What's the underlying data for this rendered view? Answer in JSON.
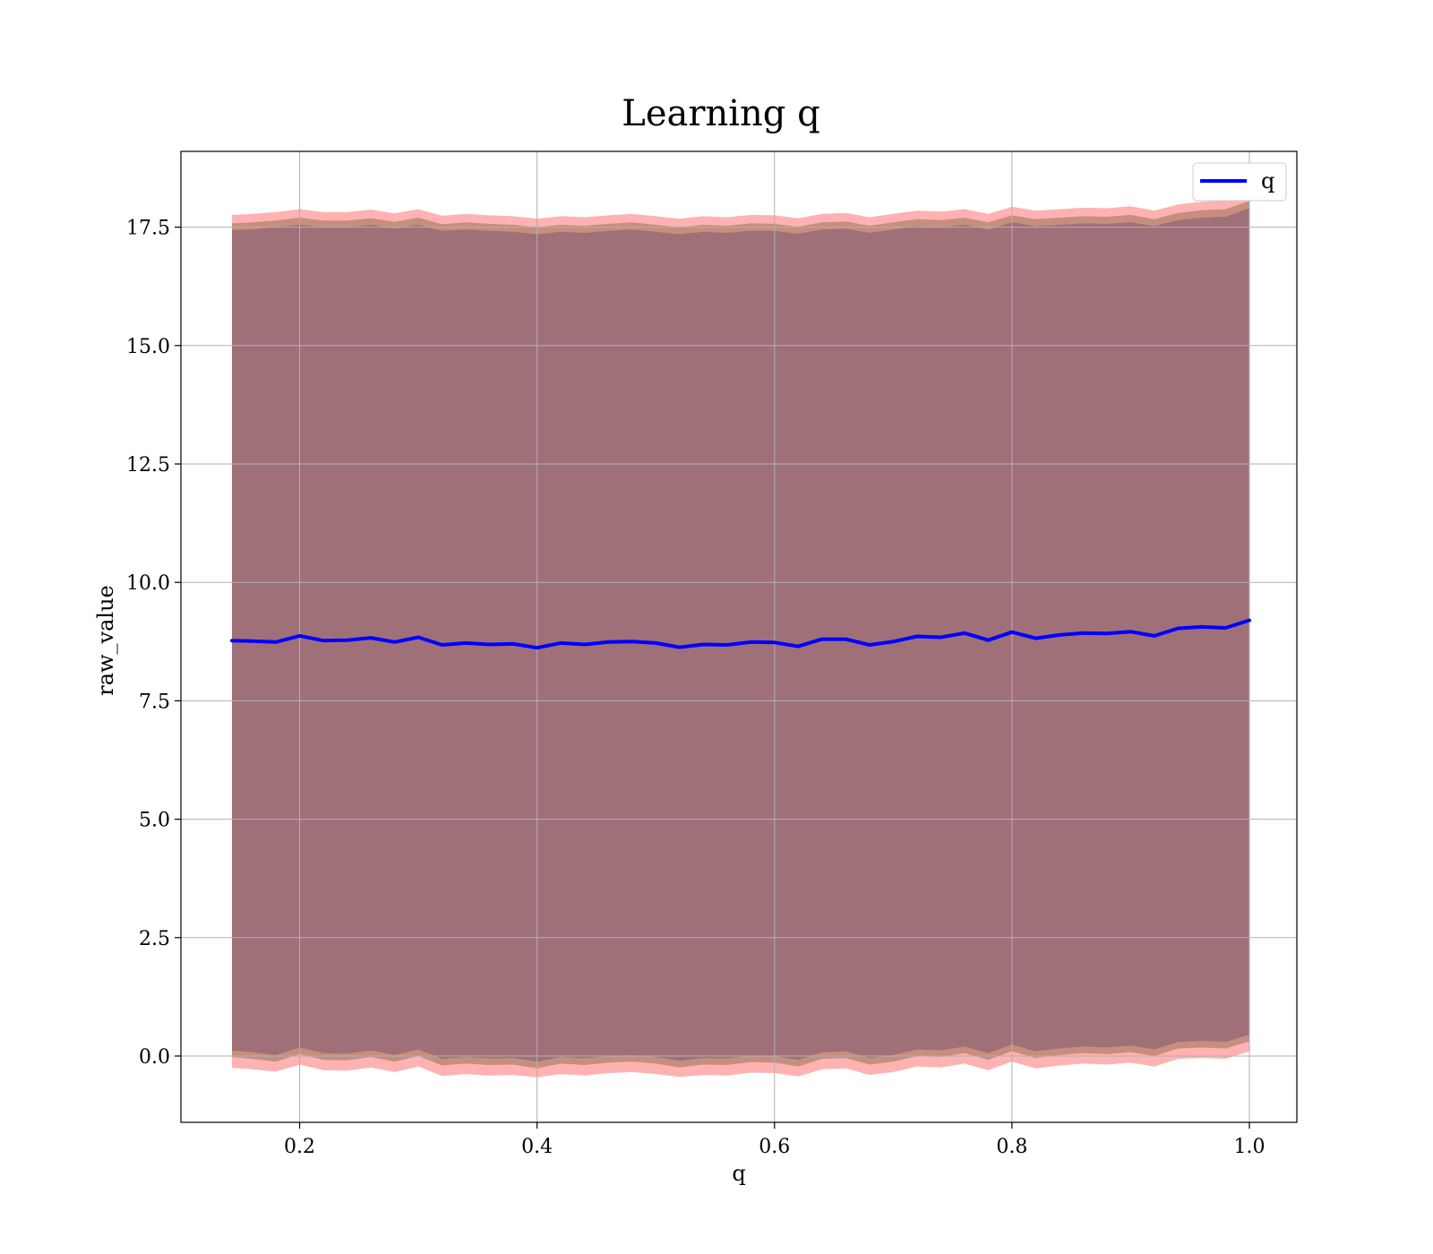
{
  "chart_data": {
    "type": "line",
    "title": "Learning q",
    "xlabel": "q",
    "ylabel": "raw_value",
    "xlim": [
      0.1,
      1.04
    ],
    "ylim": [
      -1.4,
      19.1
    ],
    "xticks": [
      "0.2",
      "0.4",
      "0.6",
      "0.8",
      "1.0"
    ],
    "xtick_values": [
      0.2,
      0.4,
      0.6,
      0.8,
      1.0
    ],
    "yticks": [
      "0.0",
      "2.5",
      "5.0",
      "7.5",
      "10.0",
      "12.5",
      "15.0",
      "17.5"
    ],
    "ytick_values": [
      0.0,
      2.5,
      5.0,
      7.5,
      10.0,
      12.5,
      15.0,
      17.5
    ],
    "grid": true,
    "legend": {
      "position": "top-right",
      "entries": [
        "q"
      ]
    },
    "colors": {
      "line": "#0000ff",
      "outer_band": "#ffaaaa",
      "middle_band": "#c08a78",
      "inner_band": "#a07078"
    },
    "series": [
      {
        "name": "q",
        "x": [
          0.143,
          0.16,
          0.18,
          0.2,
          0.22,
          0.24,
          0.26,
          0.28,
          0.3,
          0.32,
          0.34,
          0.36,
          0.38,
          0.4,
          0.42,
          0.44,
          0.46,
          0.48,
          0.5,
          0.52,
          0.54,
          0.56,
          0.58,
          0.6,
          0.62,
          0.64,
          0.66,
          0.68,
          0.7,
          0.72,
          0.74,
          0.76,
          0.78,
          0.8,
          0.82,
          0.84,
          0.86,
          0.88,
          0.9,
          0.92,
          0.94,
          0.96,
          0.98,
          1.0
        ],
        "y": [
          8.77,
          8.76,
          8.74,
          8.87,
          8.77,
          8.78,
          8.83,
          8.74,
          8.84,
          8.68,
          8.72,
          8.69,
          8.7,
          8.62,
          8.72,
          8.69,
          8.74,
          8.75,
          8.72,
          8.63,
          8.69,
          8.68,
          8.74,
          8.73,
          8.65,
          8.8,
          8.8,
          8.68,
          8.75,
          8.86,
          8.84,
          8.93,
          8.78,
          8.95,
          8.82,
          8.89,
          8.93,
          8.92,
          8.96,
          8.87,
          9.03,
          9.06,
          9.04,
          9.2
        ],
        "band_inner_upper": [
          17.44,
          17.45,
          17.5,
          17.55,
          17.5,
          17.5,
          17.55,
          17.47,
          17.55,
          17.42,
          17.45,
          17.42,
          17.4,
          17.35,
          17.4,
          17.38,
          17.42,
          17.45,
          17.4,
          17.35,
          17.4,
          17.38,
          17.42,
          17.42,
          17.36,
          17.45,
          17.47,
          17.38,
          17.45,
          17.52,
          17.5,
          17.55,
          17.45,
          17.6,
          17.52,
          17.55,
          17.58,
          17.57,
          17.6,
          17.52,
          17.65,
          17.7,
          17.72,
          17.9
        ],
        "band_inner_lower": [
          0.12,
          0.08,
          0.02,
          0.18,
          0.06,
          0.05,
          0.12,
          0.02,
          0.14,
          -0.06,
          -0.02,
          -0.05,
          -0.04,
          -0.12,
          -0.02,
          -0.05,
          0.0,
          0.02,
          -0.02,
          -0.1,
          -0.04,
          -0.05,
          0.01,
          0.0,
          -0.08,
          0.08,
          0.1,
          -0.04,
          0.02,
          0.14,
          0.12,
          0.2,
          0.06,
          0.24,
          0.1,
          0.16,
          0.2,
          0.18,
          0.22,
          0.14,
          0.3,
          0.32,
          0.3,
          0.45
        ],
        "band_middle_upper": [
          17.58,
          17.6,
          17.64,
          17.7,
          17.64,
          17.64,
          17.69,
          17.61,
          17.7,
          17.56,
          17.6,
          17.57,
          17.55,
          17.5,
          17.55,
          17.53,
          17.57,
          17.6,
          17.55,
          17.5,
          17.55,
          17.53,
          17.58,
          17.57,
          17.51,
          17.6,
          17.62,
          17.53,
          17.6,
          17.67,
          17.65,
          17.7,
          17.6,
          17.75,
          17.67,
          17.7,
          17.73,
          17.72,
          17.76,
          17.67,
          17.8,
          17.86,
          17.88,
          18.05
        ],
        "band_middle_lower": [
          -0.02,
          -0.06,
          -0.12,
          0.04,
          -0.08,
          -0.09,
          -0.02,
          -0.12,
          0.0,
          -0.2,
          -0.16,
          -0.19,
          -0.18,
          -0.26,
          -0.16,
          -0.19,
          -0.14,
          -0.12,
          -0.16,
          -0.24,
          -0.18,
          -0.19,
          -0.13,
          -0.14,
          -0.22,
          -0.06,
          -0.04,
          -0.18,
          -0.12,
          0.0,
          -0.02,
          0.06,
          -0.08,
          0.1,
          -0.04,
          0.02,
          0.06,
          0.04,
          0.08,
          0.0,
          0.16,
          0.18,
          0.16,
          0.31
        ],
        "band_outer_upper": [
          17.76,
          17.78,
          17.82,
          17.88,
          17.82,
          17.82,
          17.87,
          17.79,
          17.88,
          17.74,
          17.78,
          17.75,
          17.73,
          17.68,
          17.73,
          17.71,
          17.75,
          17.78,
          17.73,
          17.68,
          17.73,
          17.71,
          17.76,
          17.75,
          17.69,
          17.78,
          17.8,
          17.71,
          17.78,
          17.85,
          17.83,
          17.88,
          17.78,
          17.93,
          17.85,
          17.88,
          17.91,
          17.9,
          17.94,
          17.85,
          17.98,
          18.04,
          18.06,
          18.22
        ],
        "band_outer_lower": [
          -0.25,
          -0.28,
          -0.33,
          -0.18,
          -0.3,
          -0.31,
          -0.24,
          -0.34,
          -0.22,
          -0.42,
          -0.38,
          -0.41,
          -0.4,
          -0.45,
          -0.38,
          -0.41,
          -0.36,
          -0.34,
          -0.38,
          -0.44,
          -0.4,
          -0.41,
          -0.35,
          -0.36,
          -0.43,
          -0.28,
          -0.26,
          -0.4,
          -0.34,
          -0.22,
          -0.24,
          -0.16,
          -0.3,
          -0.12,
          -0.26,
          -0.2,
          -0.16,
          -0.18,
          -0.14,
          -0.22,
          -0.06,
          -0.04,
          -0.06,
          0.1
        ]
      }
    ]
  }
}
